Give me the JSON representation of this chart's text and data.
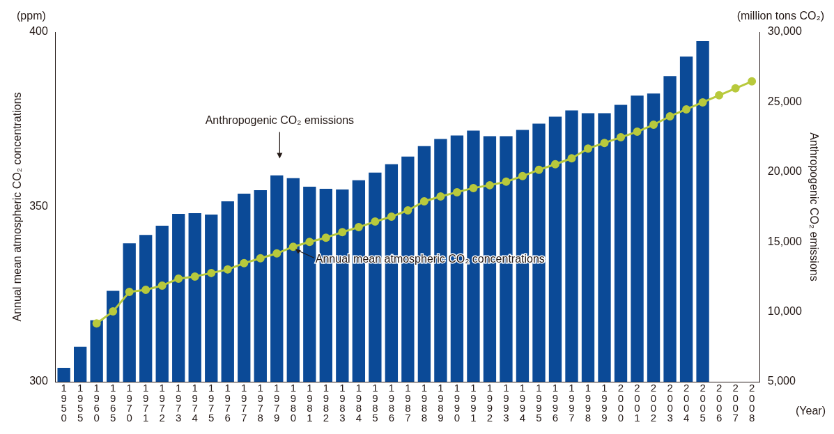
{
  "chart_data": {
    "type": "bar",
    "categories": [
      "1950",
      "1955",
      "1960",
      "1965",
      "1970",
      "1971",
      "1972",
      "1973",
      "1974",
      "1975",
      "1976",
      "1977",
      "1978",
      "1979",
      "1980",
      "1981",
      "1982",
      "1983",
      "1984",
      "1985",
      "1986",
      "1987",
      "1988",
      "1989",
      "1990",
      "1991",
      "1992",
      "1993",
      "1994",
      "1995",
      "1996",
      "1997",
      "1998",
      "1999",
      "2000",
      "2001",
      "2002",
      "2003",
      "2004",
      "2005",
      "2006",
      "2007",
      "2008"
    ],
    "ylabel": "Annual mean atmospheric CO₂ concentrations",
    "y2label": "Anthropogenic CO₂ emissions",
    "series": [
      {
        "axis": "y2",
        "color": "#0b4a97",
        "values": [
          6000,
          7500,
          9400,
          11500,
          14900,
          15500,
          16150,
          17000,
          17050,
          16950,
          17900,
          18450,
          18700,
          19750,
          19550,
          18950,
          18800,
          18750,
          19400,
          19950,
          20550,
          21100,
          21850,
          22350,
          22600,
          22950,
          22550,
          22550,
          23000,
          23450,
          23950,
          24400,
          24200,
          24200,
          24800,
          25450,
          25600,
          26850,
          28250,
          29350,
          null,
          null,
          null
        ]
      },
      {
        "type": "line",
        "axis": "y",
        "color": "#b8c93c",
        "marker": "circle",
        "line_style": "solid",
        "values": [
          null,
          null,
          316.7,
          320.1,
          325.7,
          326.3,
          327.5,
          329.5,
          330.1,
          331.1,
          332.1,
          333.9,
          335.3,
          336.7,
          338.6,
          340.0,
          341.2,
          342.8,
          344.2,
          345.8,
          347.2,
          349.0,
          351.6,
          353.0,
          354.2,
          355.4,
          356.2,
          357.2,
          358.8,
          360.6,
          362.2,
          363.9,
          366.7,
          368.3,
          369.9,
          371.5,
          373.5,
          375.9,
          377.9,
          379.9,
          381.9,
          383.9,
          385.9
        ]
      }
    ],
    "ylim": [
      300,
      400
    ],
    "yticks": [
      300,
      350,
      400
    ],
    "y2lim": [
      5000,
      30000
    ],
    "y2ticks": [
      {
        "value": 5000,
        "label": "5,000"
      },
      {
        "value": 10000,
        "label": "10,000"
      },
      {
        "value": 15000,
        "label": "15,000"
      },
      {
        "value": 20000,
        "label": "20,000"
      },
      {
        "value": 25000,
        "label": "25,000"
      },
      {
        "value": 30000,
        "label": "30,000"
      }
    ],
    "grid": false,
    "legend": false,
    "annotations": [
      "(ppm)",
      "(million tons CO₂)",
      "(Year)",
      "Anthropogenic CO₂ emissions",
      {
        "text": "Annual mean atmospheric CO₂ concentrations",
        "x": "1980",
        "y": 338.6
      }
    ]
  }
}
